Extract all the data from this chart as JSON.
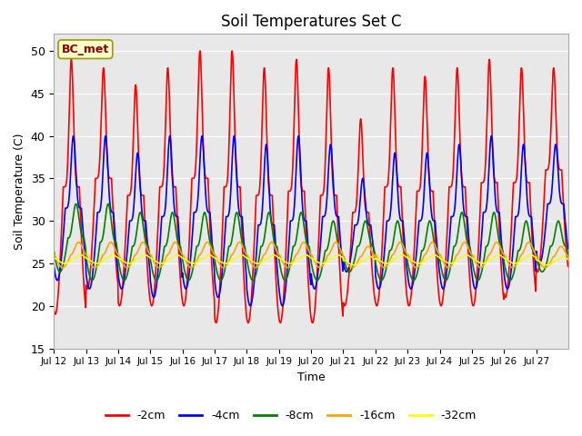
{
  "title": "Soil Temperatures Set C",
  "xlabel": "Time",
  "ylabel": "Soil Temperature (C)",
  "ylim": [
    15,
    52
  ],
  "yticks": [
    15,
    20,
    25,
    30,
    35,
    40,
    45,
    50
  ],
  "legend_label": "BC_met",
  "series_labels": [
    "-2cm",
    "-4cm",
    "-8cm",
    "-16cm",
    "-32cm"
  ],
  "series_colors": [
    "red",
    "blue",
    "green",
    "orange",
    "yellow"
  ],
  "xtick_labels": [
    "Jul 12",
    "Jul 13",
    "Jul 14",
    "Jul 15",
    "Jul 16",
    "Jul 17",
    "Jul 18",
    "Jul 19",
    "Jul 20",
    "Jul 21",
    "Jul 22",
    "Jul 23",
    "Jul 24",
    "Jul 25",
    "Jul 26",
    "Jul 27"
  ],
  "n_days": 16,
  "dt_hours": 0.25,
  "depths": [
    {
      "key": "2cm",
      "peak_hour": 13.0,
      "sharpness": 6,
      "peak_temps": [
        49,
        48,
        46,
        48,
        50,
        50,
        48,
        49,
        48,
        42,
        48,
        47,
        48,
        49,
        48,
        48
      ],
      "trough_temps": [
        19,
        22,
        20,
        20,
        20,
        18,
        18,
        18,
        18,
        20,
        20,
        20,
        20,
        20,
        21,
        24
      ]
    },
    {
      "key": "4cm",
      "peak_hour": 14.5,
      "sharpness": 5,
      "peak_temps": [
        40,
        40,
        38,
        40,
        40,
        40,
        39,
        40,
        39,
        35,
        38,
        38,
        39,
        40,
        39,
        39
      ],
      "trough_temps": [
        23,
        22,
        22,
        21,
        22,
        21,
        20,
        20,
        22,
        24,
        22,
        22,
        22,
        22,
        22,
        25
      ]
    },
    {
      "key": "8cm",
      "peak_hour": 16.5,
      "sharpness": 3,
      "peak_temps": [
        32,
        32,
        31,
        31,
        31,
        31,
        31,
        31,
        30,
        30,
        30,
        30,
        31,
        31,
        30,
        30
      ],
      "trough_temps": [
        24,
        23,
        23,
        23,
        23,
        23,
        23,
        23,
        23,
        24,
        23,
        23,
        23,
        23,
        23,
        24
      ]
    },
    {
      "key": "16cm",
      "peak_hour": 18.5,
      "sharpness": 2,
      "peak_temps": [
        27.5,
        27.5,
        27.5,
        27.5,
        27.5,
        27.5,
        27.5,
        27.5,
        27.5,
        27.0,
        27.5,
        27.5,
        27.5,
        27.5,
        27.5,
        27.0
      ],
      "trough_temps": [
        24.5,
        24.5,
        24.5,
        24.5,
        24.5,
        24.5,
        24.5,
        24.5,
        24.5,
        24.5,
        24.5,
        24.5,
        24.5,
        24.5,
        24.5,
        24.5
      ]
    },
    {
      "key": "32cm",
      "peak_hour": 20.0,
      "sharpness": 2,
      "peak_temps": [
        26.0,
        26.0,
        26.0,
        26.0,
        26.0,
        26.0,
        26.0,
        26.0,
        26.0,
        25.8,
        26.0,
        26.0,
        26.0,
        26.0,
        26.0,
        25.8
      ],
      "trough_temps": [
        25.0,
        25.0,
        25.0,
        25.0,
        25.0,
        25.0,
        25.0,
        25.0,
        25.0,
        24.8,
        25.0,
        25.0,
        25.0,
        25.0,
        25.0,
        24.8
      ]
    }
  ]
}
